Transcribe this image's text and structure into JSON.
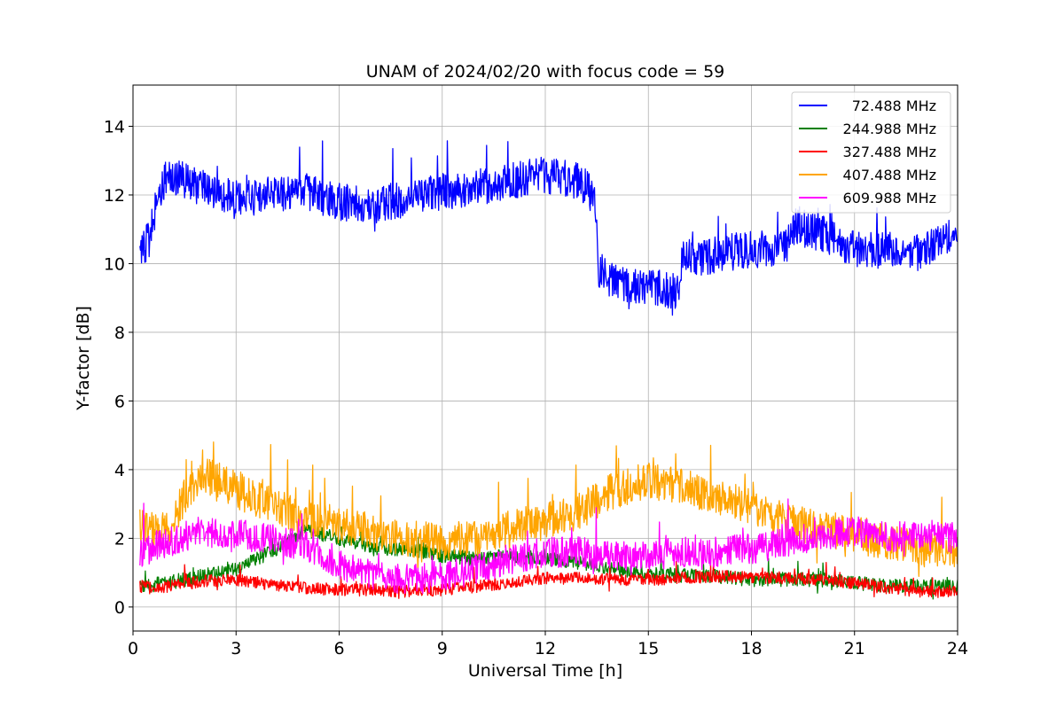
{
  "chart_data": {
    "type": "line",
    "title": "UNAM of 2024/02/20 with focus code = 59",
    "xlabel": "Universal Time [h]",
    "ylabel": "Y-factor [dB]",
    "xlim": [
      0,
      24
    ],
    "ylim": [
      -0.7,
      15.2
    ],
    "xticks": [
      0,
      3,
      6,
      9,
      12,
      15,
      18,
      21,
      24
    ],
    "yticks": [
      0,
      2,
      4,
      6,
      8,
      10,
      12,
      14
    ],
    "grid": true,
    "legend_position": "top-right",
    "series": [
      {
        "name": "72.488 MHz",
        "color": "#0000ff",
        "noise": 0.9,
        "x": [
          0.2,
          0.5,
          0.75,
          1.0,
          2.0,
          3.0,
          4.0,
          5.0,
          6.0,
          7.0,
          8.0,
          9.0,
          10.0,
          11.0,
          12.0,
          13.0,
          13.45,
          13.55,
          14.0,
          15.0,
          15.9,
          16.0,
          16.5,
          17.0,
          18.0,
          19.0,
          19.2,
          20.0,
          21.0,
          22.0,
          23.0,
          23.5,
          24.0
        ],
        "y": [
          10.2,
          10.8,
          12.1,
          12.6,
          12.2,
          11.9,
          12.0,
          12.1,
          11.8,
          11.7,
          11.9,
          12.1,
          12.2,
          12.4,
          12.6,
          12.4,
          11.9,
          9.8,
          9.5,
          9.3,
          9.2,
          10.3,
          10.1,
          10.3,
          10.4,
          10.5,
          11.1,
          10.9,
          10.4,
          10.4,
          10.3,
          10.8,
          10.8
        ]
      },
      {
        "name": "244.988 MHz",
        "color": "#008000",
        "noise": 0.35,
        "x": [
          0.2,
          1.0,
          2.0,
          3.0,
          4.0,
          5.0,
          6.0,
          7.0,
          8.0,
          9.0,
          10.0,
          11.0,
          12.0,
          13.0,
          14.0,
          15.0,
          16.0,
          17.0,
          18.0,
          19.0,
          20.0,
          21.0,
          22.0,
          23.0,
          24.0
        ],
        "y": [
          0.6,
          0.7,
          0.9,
          1.1,
          1.6,
          2.2,
          2.0,
          1.7,
          1.7,
          1.5,
          1.4,
          1.5,
          1.4,
          1.3,
          1.1,
          1.0,
          0.9,
          0.9,
          0.8,
          0.8,
          0.8,
          0.7,
          0.6,
          0.6,
          0.6
        ]
      },
      {
        "name": "327.488 MHz",
        "color": "#ff0000",
        "noise": 0.3,
        "x": [
          0.2,
          1.0,
          2.0,
          3.0,
          4.0,
          5.0,
          6.0,
          7.0,
          8.0,
          9.0,
          10.0,
          11.0,
          12.0,
          13.0,
          14.0,
          15.0,
          16.0,
          17.0,
          18.0,
          19.0,
          20.0,
          21.0,
          22.0,
          23.0,
          24.0
        ],
        "y": [
          0.6,
          0.6,
          0.75,
          0.8,
          0.65,
          0.55,
          0.5,
          0.5,
          0.45,
          0.5,
          0.6,
          0.7,
          0.85,
          0.85,
          0.8,
          0.8,
          0.85,
          0.9,
          0.85,
          0.85,
          0.8,
          0.7,
          0.55,
          0.45,
          0.45
        ]
      },
      {
        "name": "407.488 MHz",
        "color": "#ffa500",
        "noise": 0.9,
        "x": [
          0.2,
          1.0,
          1.5,
          2.0,
          2.5,
          3.0,
          4.0,
          5.0,
          6.0,
          7.0,
          8.0,
          9.0,
          10.0,
          11.0,
          12.0,
          13.0,
          14.0,
          15.0,
          16.0,
          17.0,
          18.0,
          19.0,
          20.0,
          21.0,
          22.0,
          23.0,
          24.0
        ],
        "y": [
          2.3,
          2.2,
          3.2,
          3.8,
          3.7,
          3.4,
          3.0,
          2.6,
          2.4,
          2.2,
          2.0,
          1.9,
          2.0,
          2.3,
          2.5,
          2.8,
          3.4,
          3.7,
          3.5,
          3.2,
          2.9,
          2.5,
          2.3,
          2.1,
          1.9,
          1.7,
          1.5
        ]
      },
      {
        "name": "609.988 MHz",
        "color": "#ff00ff",
        "noise": 0.75,
        "x": [
          0.2,
          1.0,
          2.0,
          3.0,
          4.0,
          5.0,
          6.0,
          7.0,
          8.0,
          9.0,
          10.0,
          11.0,
          12.0,
          13.0,
          14.0,
          15.0,
          16.0,
          17.0,
          18.0,
          19.0,
          20.0,
          21.0,
          22.0,
          23.0,
          24.0
        ],
        "y": [
          1.6,
          1.9,
          2.2,
          2.1,
          2.0,
          1.8,
          1.2,
          0.9,
          0.8,
          0.9,
          1.1,
          1.4,
          1.6,
          1.6,
          1.5,
          1.5,
          1.6,
          1.6,
          1.7,
          1.9,
          2.1,
          2.2,
          2.0,
          2.1,
          2.0
        ]
      }
    ]
  }
}
